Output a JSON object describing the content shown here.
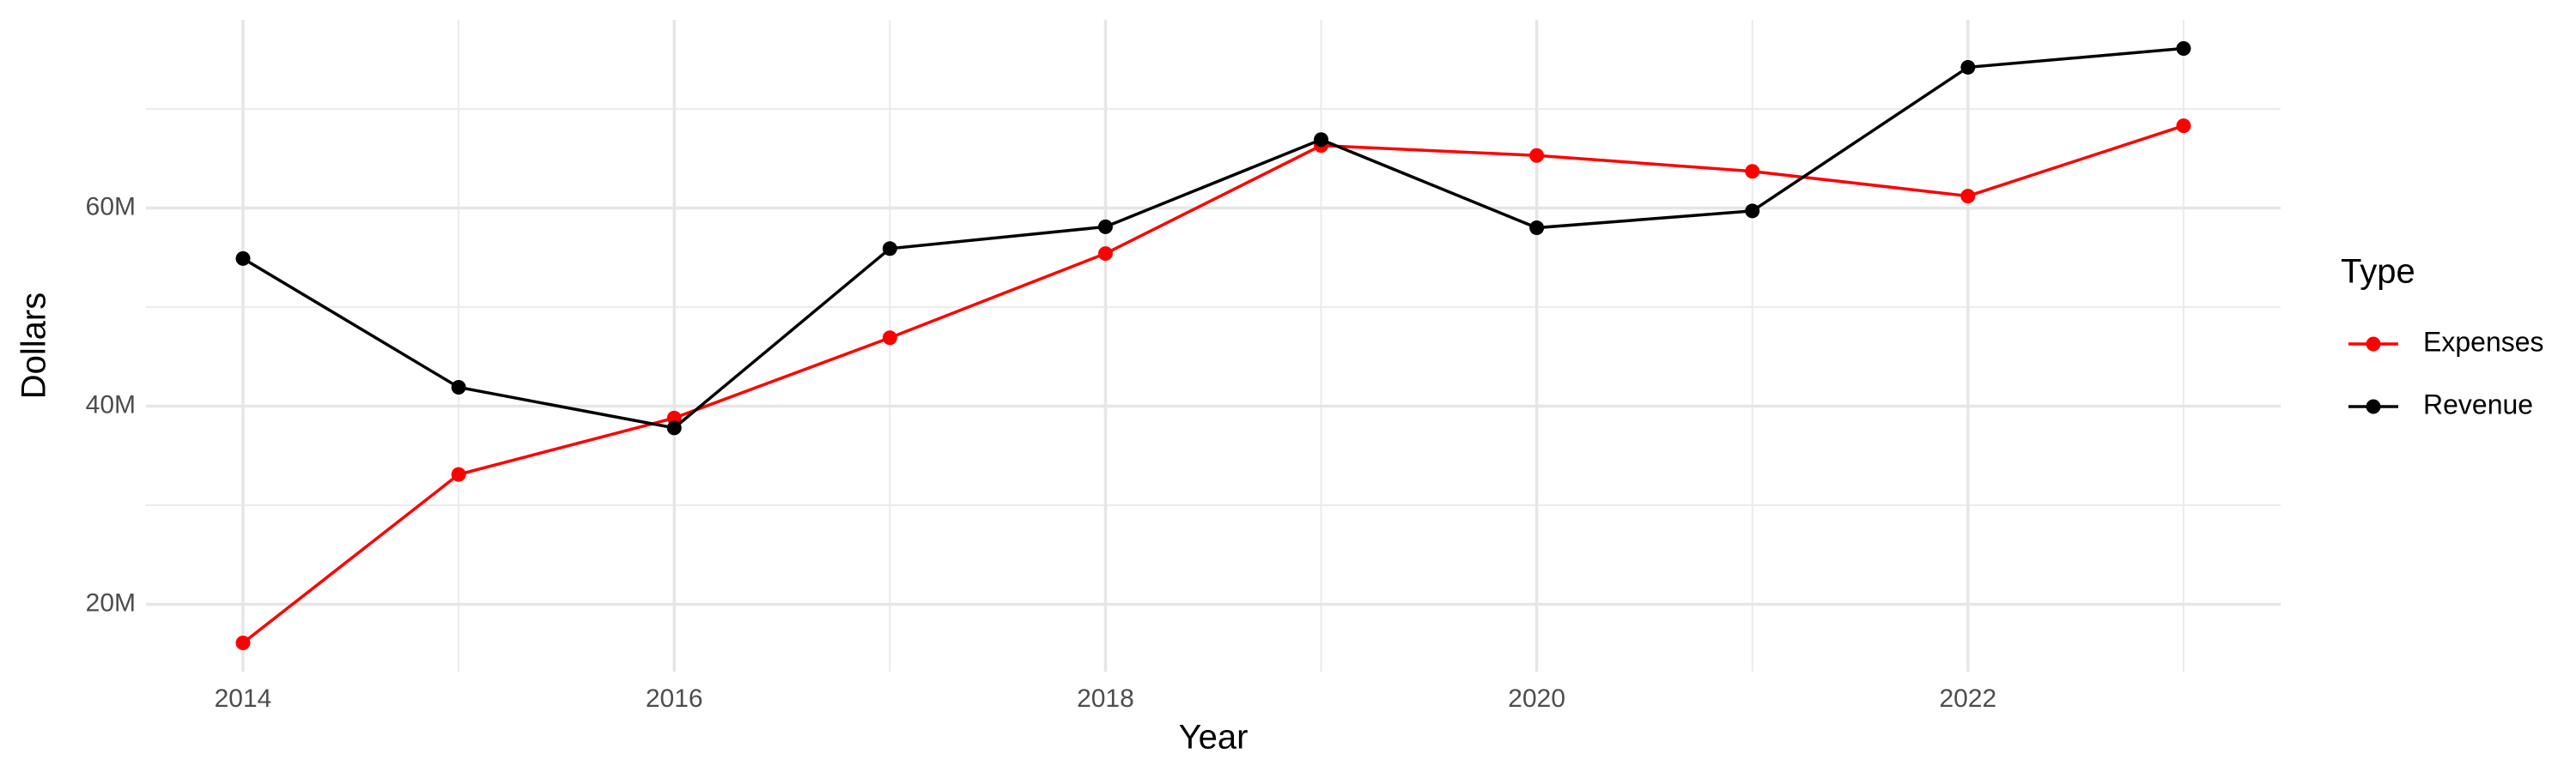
{
  "chart_data": {
    "type": "line",
    "x_label": "Year",
    "y_label": "Dollars",
    "legend_title": "Type",
    "x": [
      2014,
      2015,
      2016,
      2017,
      2018,
      2019,
      2020,
      2021,
      2022,
      2023
    ],
    "series": [
      {
        "name": "Expenses",
        "color": "#ff0000",
        "values": [
          16100000,
          33100000,
          38800000,
          46900000,
          55400000,
          66300000,
          65300000,
          63700000,
          61200000,
          68300000
        ]
      },
      {
        "name": "Revenue",
        "color": "#000000",
        "values": [
          54900000,
          41900000,
          37800000,
          55900000,
          58100000,
          66900000,
          58000000,
          59700000,
          74200000,
          76100000
        ]
      }
    ],
    "xlim": [
      2013.55,
      2023.45
    ],
    "xticks": [
      2014,
      2016,
      2018,
      2020,
      2022
    ],
    "ylim": [
      13200000,
      79000000
    ],
    "yticks": [
      {
        "value": 20000000,
        "label": "20M"
      },
      {
        "value": 40000000,
        "label": "40M"
      },
      {
        "value": 60000000,
        "label": "60M"
      }
    ],
    "grid": true,
    "legend_position": "right"
  }
}
